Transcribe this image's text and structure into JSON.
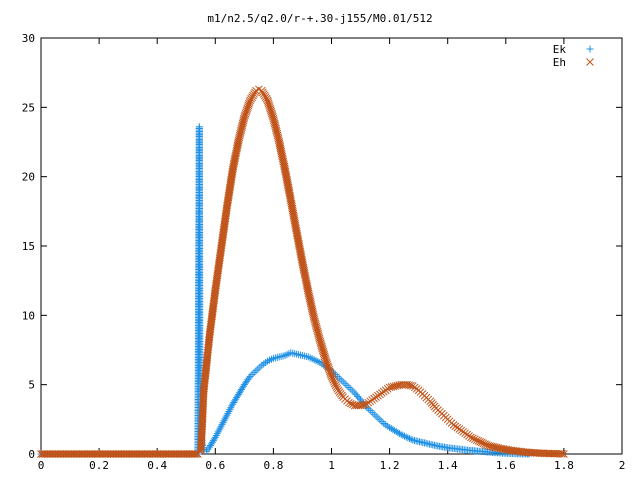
{
  "chart_data": {
    "type": "scatter",
    "title": "m1/n2.5/q2.0/r-+.30-j155/M0.01/512",
    "xlabel": "",
    "ylabel": "",
    "xlim": [
      0,
      2
    ],
    "ylim": [
      0,
      30
    ],
    "x_ticks": [
      "0",
      "0.2",
      "0.4",
      "0.6",
      "0.8",
      "1",
      "1.2",
      "1.4",
      "1.6",
      "1.8",
      "2"
    ],
    "y_ticks": [
      "0",
      "5",
      "10",
      "15",
      "20",
      "25",
      "30"
    ],
    "grid": false,
    "legend_position": "top-right",
    "series": [
      {
        "name": "Ek",
        "marker": "plus",
        "color": "#1e90e6",
        "points": [
          [
            0.0,
            0.0
          ],
          [
            0.1,
            0.0
          ],
          [
            0.2,
            0.0
          ],
          [
            0.3,
            0.0
          ],
          [
            0.4,
            0.0
          ],
          [
            0.5,
            0.0
          ],
          [
            0.54,
            0.0
          ],
          [
            0.545,
            23.6
          ],
          [
            0.547,
            5.8
          ],
          [
            0.55,
            2.3
          ],
          [
            0.553,
            1.1
          ],
          [
            0.556,
            0.6
          ],
          [
            0.56,
            0.3
          ],
          [
            0.57,
            0.2
          ],
          [
            0.58,
            0.5
          ],
          [
            0.6,
            1.2
          ],
          [
            0.62,
            2.0
          ],
          [
            0.64,
            2.8
          ],
          [
            0.66,
            3.6
          ],
          [
            0.68,
            4.3
          ],
          [
            0.7,
            5.0
          ],
          [
            0.72,
            5.6
          ],
          [
            0.74,
            6.0
          ],
          [
            0.76,
            6.4
          ],
          [
            0.78,
            6.7
          ],
          [
            0.8,
            6.9
          ],
          [
            0.82,
            7.0
          ],
          [
            0.84,
            7.1
          ],
          [
            0.86,
            7.3
          ],
          [
            0.88,
            7.2
          ],
          [
            0.9,
            7.1
          ],
          [
            0.92,
            7.0
          ],
          [
            0.94,
            6.8
          ],
          [
            0.96,
            6.6
          ],
          [
            0.98,
            6.3
          ],
          [
            1.0,
            6.0
          ],
          [
            1.02,
            5.6
          ],
          [
            1.04,
            5.2
          ],
          [
            1.06,
            4.8
          ],
          [
            1.08,
            4.4
          ],
          [
            1.1,
            3.9
          ],
          [
            1.12,
            3.4
          ],
          [
            1.14,
            3.0
          ],
          [
            1.16,
            2.6
          ],
          [
            1.18,
            2.2
          ],
          [
            1.2,
            1.9
          ],
          [
            1.24,
            1.4
          ],
          [
            1.28,
            1.0
          ],
          [
            1.32,
            0.8
          ],
          [
            1.36,
            0.6
          ],
          [
            1.4,
            0.45
          ],
          [
            1.44,
            0.35
          ],
          [
            1.48,
            0.25
          ],
          [
            1.52,
            0.18
          ],
          [
            1.56,
            0.1
          ],
          [
            1.6,
            0.05
          ],
          [
            1.64,
            0.02
          ],
          [
            1.68,
            0.0
          ]
        ]
      },
      {
        "name": "Eh",
        "marker": "cross",
        "color": "#c0541a",
        "points": [
          [
            0.0,
            0.0
          ],
          [
            0.1,
            0.0
          ],
          [
            0.2,
            0.0
          ],
          [
            0.3,
            0.0
          ],
          [
            0.4,
            0.0
          ],
          [
            0.5,
            0.0
          ],
          [
            0.54,
            0.0
          ],
          [
            0.55,
            0.2
          ],
          [
            0.555,
            2.0
          ],
          [
            0.56,
            4.5
          ],
          [
            0.57,
            6.5
          ],
          [
            0.58,
            8.5
          ],
          [
            0.6,
            11.8
          ],
          [
            0.62,
            14.8
          ],
          [
            0.64,
            17.8
          ],
          [
            0.66,
            20.5
          ],
          [
            0.68,
            22.6
          ],
          [
            0.7,
            24.3
          ],
          [
            0.72,
            25.5
          ],
          [
            0.74,
            26.2
          ],
          [
            0.75,
            26.3
          ],
          [
            0.76,
            26.2
          ],
          [
            0.78,
            25.5
          ],
          [
            0.8,
            24.2
          ],
          [
            0.82,
            22.5
          ],
          [
            0.84,
            20.5
          ],
          [
            0.86,
            18.3
          ],
          [
            0.88,
            16.0
          ],
          [
            0.9,
            13.8
          ],
          [
            0.92,
            11.7
          ],
          [
            0.94,
            9.8
          ],
          [
            0.96,
            8.2
          ],
          [
            0.98,
            6.8
          ],
          [
            1.0,
            5.6
          ],
          [
            1.02,
            4.7
          ],
          [
            1.04,
            4.1
          ],
          [
            1.06,
            3.7
          ],
          [
            1.08,
            3.5
          ],
          [
            1.1,
            3.5
          ],
          [
            1.12,
            3.6
          ],
          [
            1.14,
            3.9
          ],
          [
            1.16,
            4.2
          ],
          [
            1.18,
            4.5
          ],
          [
            1.2,
            4.8
          ],
          [
            1.22,
            4.9
          ],
          [
            1.24,
            5.0
          ],
          [
            1.26,
            5.0
          ],
          [
            1.28,
            4.9
          ],
          [
            1.3,
            4.6
          ],
          [
            1.32,
            4.2
          ],
          [
            1.34,
            3.8
          ],
          [
            1.36,
            3.3
          ],
          [
            1.38,
            2.9
          ],
          [
            1.4,
            2.5
          ],
          [
            1.42,
            2.1
          ],
          [
            1.44,
            1.8
          ],
          [
            1.46,
            1.5
          ],
          [
            1.48,
            1.2
          ],
          [
            1.5,
            1.0
          ],
          [
            1.54,
            0.6
          ],
          [
            1.58,
            0.4
          ],
          [
            1.62,
            0.25
          ],
          [
            1.66,
            0.15
          ],
          [
            1.7,
            0.08
          ],
          [
            1.74,
            0.04
          ],
          [
            1.78,
            0.02
          ],
          [
            1.8,
            0.0
          ]
        ]
      }
    ]
  }
}
